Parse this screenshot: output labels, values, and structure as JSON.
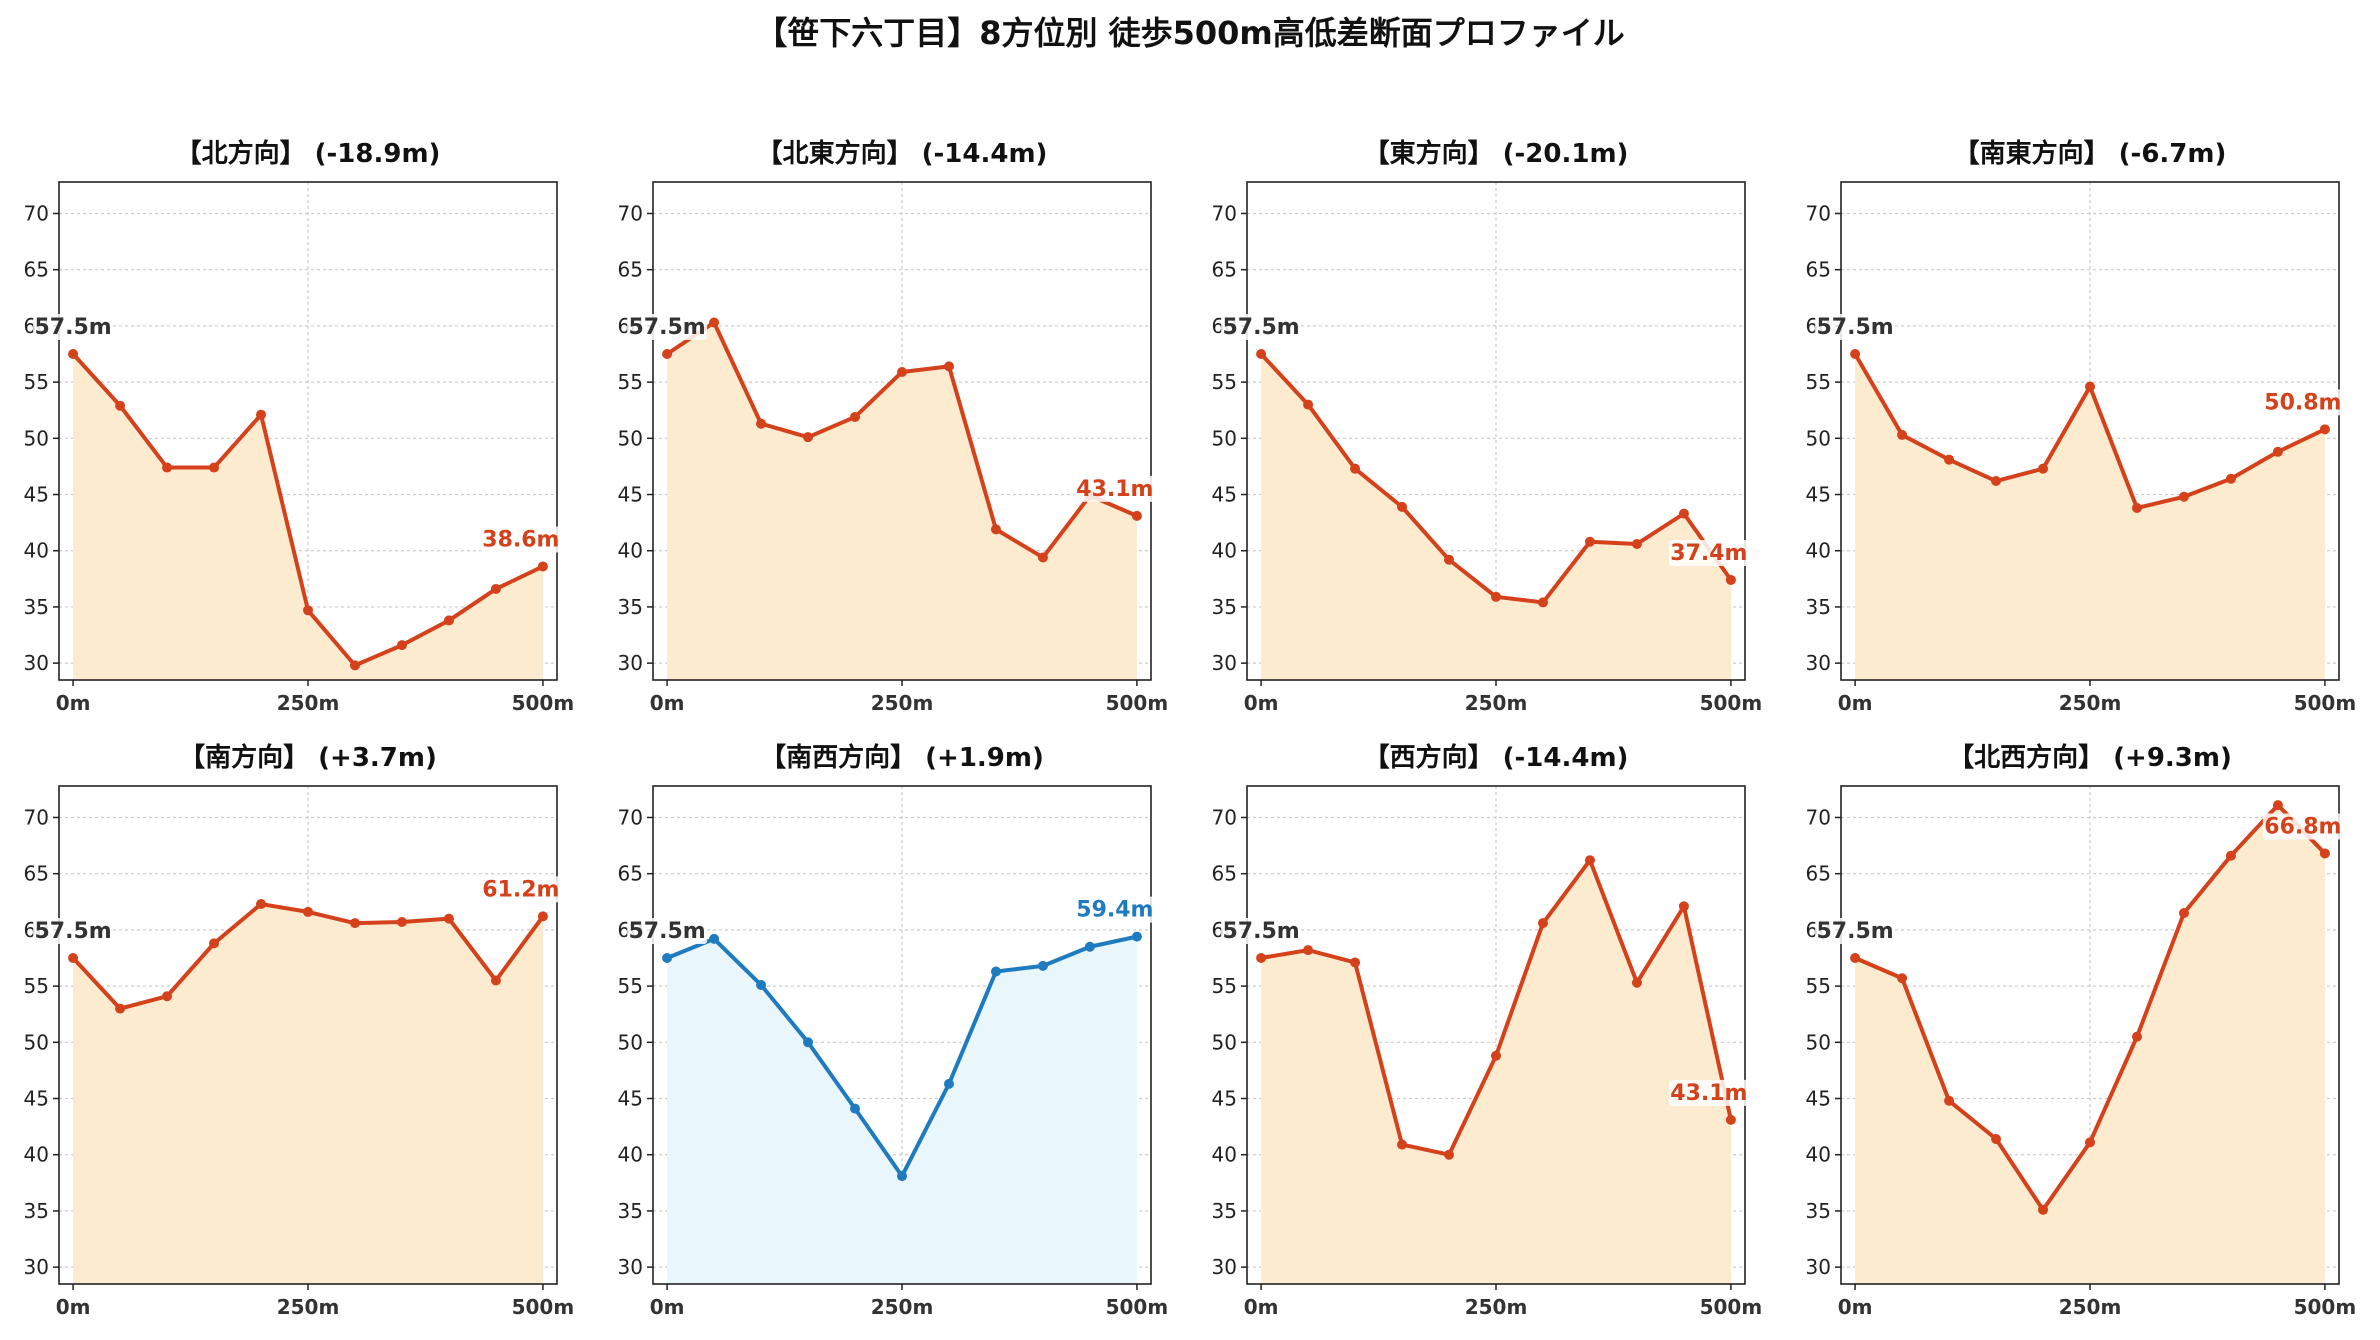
{
  "title": "【笹下六丁目】8方位別 徒歩500m高低差断面プロファイル",
  "colors": {
    "down_line": "#d4411a",
    "down_fill": "#fdebd0",
    "up_line": "#1f7bbf",
    "up_fill": "#e9f6fb",
    "start_label": "#333333",
    "grid": "#cccccc"
  },
  "chart_data": [
    {
      "type": "line",
      "title": "【北方向】 (-18.9m)",
      "x": [
        0,
        50,
        100,
        150,
        200,
        250,
        300,
        350,
        400,
        450,
        500
      ],
      "y": [
        57.5,
        52.9,
        47.4,
        47.4,
        52.1,
        34.7,
        29.8,
        31.6,
        33.8,
        36.6,
        38.6
      ],
      "start_label": "57.5m",
      "end_label": "38.6m",
      "color": "orange",
      "xticks": [
        "0m",
        "250m",
        "500m"
      ],
      "yticks": [
        30,
        35,
        40,
        45,
        50,
        55,
        60,
        65,
        70
      ],
      "ylim": [
        28.5,
        72.8
      ],
      "xlim": [
        -15,
        515
      ],
      "grid": true
    },
    {
      "type": "line",
      "title": "【北東方向】 (-14.4m)",
      "x": [
        0,
        50,
        100,
        150,
        200,
        250,
        300,
        350,
        400,
        450,
        500
      ],
      "y": [
        57.5,
        60.3,
        51.3,
        50.1,
        51.9,
        55.9,
        56.4,
        41.9,
        39.4,
        44.9,
        43.1
      ],
      "start_label": "57.5m",
      "end_label": "43.1m",
      "color": "orange",
      "xticks": [
        "0m",
        "250m",
        "500m"
      ],
      "yticks": [
        30,
        35,
        40,
        45,
        50,
        55,
        60,
        65,
        70
      ],
      "ylim": [
        28.5,
        72.8
      ],
      "xlim": [
        -15,
        515
      ],
      "grid": true
    },
    {
      "type": "line",
      "title": "【東方向】 (-20.1m)",
      "x": [
        0,
        50,
        100,
        150,
        200,
        250,
        300,
        350,
        400,
        450,
        500
      ],
      "y": [
        57.5,
        53.0,
        47.3,
        43.9,
        39.2,
        35.9,
        35.4,
        40.8,
        40.6,
        43.3,
        37.4
      ],
      "start_label": "57.5m",
      "end_label": "37.4m",
      "color": "orange",
      "xticks": [
        "0m",
        "250m",
        "500m"
      ],
      "yticks": [
        30,
        35,
        40,
        45,
        50,
        55,
        60,
        65,
        70
      ],
      "ylim": [
        28.5,
        72.8
      ],
      "xlim": [
        -15,
        515
      ],
      "grid": true
    },
    {
      "type": "line",
      "title": "【南東方向】 (-6.7m)",
      "x": [
        0,
        50,
        100,
        150,
        200,
        250,
        300,
        350,
        400,
        450,
        500
      ],
      "y": [
        57.5,
        50.3,
        48.1,
        46.2,
        47.3,
        54.6,
        43.8,
        44.8,
        46.4,
        48.8,
        50.8
      ],
      "start_label": "57.5m",
      "end_label": "50.8m",
      "color": "orange",
      "xticks": [
        "0m",
        "250m",
        "500m"
      ],
      "yticks": [
        30,
        35,
        40,
        45,
        50,
        55,
        60,
        65,
        70
      ],
      "ylim": [
        28.5,
        72.8
      ],
      "xlim": [
        -15,
        515
      ],
      "grid": true
    },
    {
      "type": "line",
      "title": "【南方向】 (+3.7m)",
      "x": [
        0,
        50,
        100,
        150,
        200,
        250,
        300,
        350,
        400,
        450,
        500
      ],
      "y": [
        57.5,
        53.0,
        54.1,
        58.8,
        62.3,
        61.6,
        60.6,
        60.7,
        61.0,
        55.5,
        61.2
      ],
      "start_label": "57.5m",
      "end_label": "61.2m",
      "color": "orange",
      "xticks": [
        "0m",
        "250m",
        "500m"
      ],
      "yticks": [
        30,
        35,
        40,
        45,
        50,
        55,
        60,
        65,
        70
      ],
      "ylim": [
        28.5,
        72.8
      ],
      "xlim": [
        -15,
        515
      ],
      "grid": true
    },
    {
      "type": "line",
      "title": "【南西方向】 (+1.9m)",
      "x": [
        0,
        50,
        100,
        150,
        200,
        250,
        300,
        350,
        400,
        450,
        500
      ],
      "y": [
        57.5,
        59.2,
        55.1,
        50.0,
        44.1,
        38.1,
        46.3,
        56.3,
        56.8,
        58.5,
        59.4
      ],
      "start_label": "57.5m",
      "end_label": "59.4m",
      "color": "blue",
      "xticks": [
        "0m",
        "250m",
        "500m"
      ],
      "yticks": [
        30,
        35,
        40,
        45,
        50,
        55,
        60,
        65,
        70
      ],
      "ylim": [
        28.5,
        72.8
      ],
      "xlim": [
        -15,
        515
      ],
      "grid": true
    },
    {
      "type": "line",
      "title": "【西方向】 (-14.4m)",
      "x": [
        0,
        50,
        100,
        150,
        200,
        250,
        300,
        350,
        400,
        450,
        500
      ],
      "y": [
        57.5,
        58.2,
        57.1,
        40.9,
        40.0,
        48.8,
        60.6,
        66.2,
        55.3,
        62.1,
        43.1
      ],
      "start_label": "57.5m",
      "end_label": "43.1m",
      "color": "orange",
      "xticks": [
        "0m",
        "250m",
        "500m"
      ],
      "yticks": [
        30,
        35,
        40,
        45,
        50,
        55,
        60,
        65,
        70
      ],
      "ylim": [
        28.5,
        72.8
      ],
      "xlim": [
        -15,
        515
      ],
      "grid": true
    },
    {
      "type": "line",
      "title": "【北西方向】 (+9.3m)",
      "x": [
        0,
        50,
        100,
        150,
        200,
        250,
        300,
        350,
        400,
        450,
        500
      ],
      "y": [
        57.5,
        55.7,
        44.8,
        41.4,
        35.1,
        41.1,
        50.5,
        61.5,
        66.6,
        71.1,
        66.8
      ],
      "start_label": "57.5m",
      "end_label": "66.8m",
      "color": "orange",
      "xticks": [
        "0m",
        "250m",
        "500m"
      ],
      "yticks": [
        30,
        35,
        40,
        45,
        50,
        55,
        60,
        65,
        70
      ],
      "ylim": [
        28.5,
        72.8
      ],
      "xlim": [
        -15,
        515
      ],
      "grid": true
    }
  ]
}
